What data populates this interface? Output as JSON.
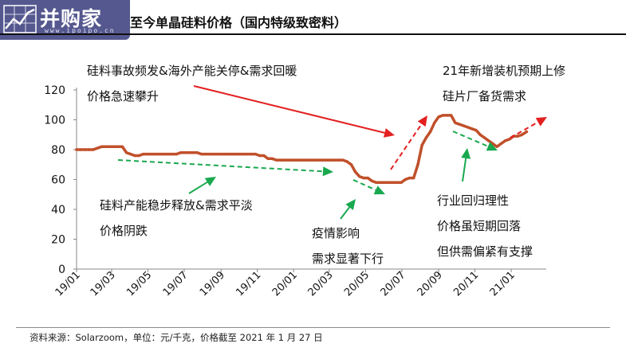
{
  "header": {
    "logo_text": "并购家",
    "logo_url_text": "www.ipoipo.cn",
    "title": "至今单晶硅料价格（国内特级致密料）"
  },
  "chart_data": {
    "type": "line",
    "title": "至今单晶硅料价格（国内特级致密料）",
    "xlabel": "",
    "ylabel": "",
    "ylim": [
      0,
      120
    ],
    "y_ticks": [
      "0",
      "20",
      "40",
      "60",
      "80",
      "100",
      "120"
    ],
    "x_ticks": [
      "19/01",
      "19/03",
      "19/05",
      "19/07",
      "19/09",
      "19/11",
      "20/01",
      "20/03",
      "20/05",
      "20/07",
      "20/09",
      "20/11",
      "21/01"
    ],
    "grid": false,
    "color": "#c0502a",
    "series": [
      {
        "x": [
          "2019-01-01",
          "2019-01-08",
          "2019-01-15",
          "2019-01-22",
          "2019-01-29",
          "2019-02-05",
          "2019-02-12",
          "2019-02-19",
          "2019-02-26",
          "2019-03-05",
          "2019-03-12",
          "2019-03-19",
          "2019-03-26",
          "2019-04-02",
          "2019-04-09",
          "2019-04-16",
          "2019-04-23",
          "2019-04-30",
          "2019-05-07",
          "2019-05-14",
          "2019-05-21",
          "2019-05-28",
          "2019-06-04",
          "2019-06-11",
          "2019-06-18",
          "2019-06-25",
          "2019-07-02",
          "2019-07-09",
          "2019-07-16",
          "2019-07-23",
          "2019-07-30",
          "2019-08-06",
          "2019-08-13",
          "2019-08-20",
          "2019-08-27",
          "2019-09-03",
          "2019-09-10",
          "2019-09-17",
          "2019-09-24",
          "2019-10-01",
          "2019-10-08",
          "2019-10-15",
          "2019-10-22",
          "2019-10-29",
          "2019-11-05",
          "2019-11-12",
          "2019-11-19",
          "2019-11-26",
          "2019-12-03",
          "2019-12-10",
          "2019-12-17",
          "2019-12-24",
          "2019-12-31",
          "2020-01-07",
          "2020-01-14",
          "2020-01-21",
          "2020-01-28",
          "2020-02-04",
          "2020-02-11",
          "2020-02-18",
          "2020-02-25",
          "2020-03-03",
          "2020-03-10",
          "2020-03-17",
          "2020-03-24",
          "2020-03-31",
          "2020-04-07",
          "2020-04-14",
          "2020-04-21",
          "2020-04-28",
          "2020-05-05",
          "2020-05-12",
          "2020-05-19",
          "2020-05-26",
          "2020-06-02",
          "2020-06-09",
          "2020-06-16",
          "2020-06-23",
          "2020-06-30",
          "2020-07-07",
          "2020-07-14",
          "2020-07-21",
          "2020-07-28",
          "2020-08-04",
          "2020-08-11",
          "2020-08-18",
          "2020-08-25",
          "2020-09-01",
          "2020-09-08",
          "2020-09-15",
          "2020-09-22",
          "2020-09-29",
          "2020-10-06",
          "2020-10-13",
          "2020-10-20",
          "2020-10-27",
          "2020-11-03",
          "2020-11-10",
          "2020-11-17",
          "2020-11-24",
          "2020-12-01",
          "2020-12-08",
          "2020-12-15",
          "2020-12-22",
          "2020-12-29",
          "2021-01-05",
          "2021-01-12",
          "2021-01-19",
          "2021-01-27"
        ],
        "values": [
          80,
          80,
          80,
          80,
          80,
          81,
          82,
          82,
          82,
          82,
          82,
          82,
          78,
          77,
          76,
          76,
          77,
          77,
          77,
          77,
          77,
          77,
          77,
          77,
          77,
          78,
          78,
          78,
          78,
          78,
          77,
          77,
          77,
          77,
          77,
          77,
          77,
          77,
          77,
          77,
          77,
          77,
          77,
          77,
          76,
          76,
          74,
          74,
          73,
          73,
          73,
          73,
          73,
          73,
          73,
          73,
          73,
          73,
          73,
          73,
          73,
          73,
          73,
          73,
          73,
          72,
          70,
          65,
          62,
          61,
          61,
          59,
          58,
          58,
          58,
          58,
          58,
          58,
          58,
          60,
          61,
          61,
          70,
          83,
          88,
          92,
          98,
          102,
          103,
          103,
          103,
          98,
          97,
          96,
          95,
          94,
          93,
          90,
          88,
          86,
          84,
          82,
          84,
          86,
          87,
          89,
          89,
          90,
          92
        ]
      }
    ],
    "annotations": {
      "a1": [
        "硅料事故频发&海外产能关停&需求回暖",
        "价格急速攀升"
      ],
      "a2": [
        "21年新增装机预期上修",
        "硅片厂备货需求"
      ],
      "a3": [
        "硅料产能稳步释放&需求平淡",
        "价格阴跌"
      ],
      "a4": [
        "疫情影响",
        "需求显著下行"
      ],
      "a5": [
        "行业回归理性",
        "价格虽短期回落",
        "但供需偏紧有支撑"
      ]
    },
    "arrow_colors": {
      "red": "#e32020",
      "green": "#19a84e"
    }
  },
  "footer": {
    "source": "资料来源：Solarzoom，单位：元/千克，价格截至 2021 年 1 月 27 日"
  }
}
